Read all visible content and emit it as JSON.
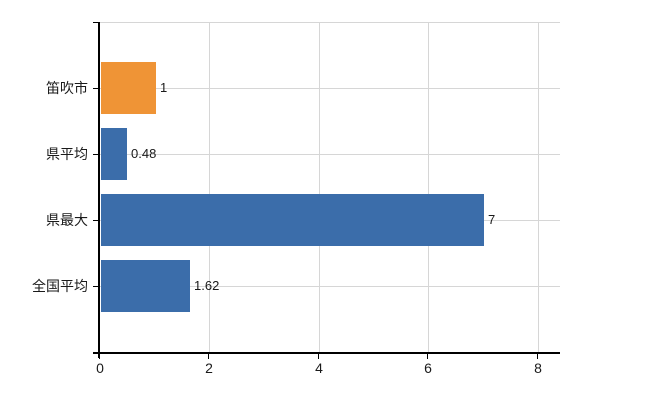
{
  "chart_data": {
    "type": "bar",
    "orientation": "horizontal",
    "title": "",
    "xlabel": "",
    "ylabel": "",
    "categories": [
      "笛吹市",
      "県平均",
      "県最大",
      "全国平均"
    ],
    "values": [
      1,
      0.48,
      7,
      1.62
    ],
    "value_labels": [
      "1",
      "0.48",
      "7",
      "1.62"
    ],
    "bar_colors": [
      "#ef9436",
      "#3b6daa",
      "#3b6daa",
      "#3b6daa"
    ],
    "x_ticks": [
      "0",
      "2",
      "4",
      "6",
      "8"
    ],
    "x_tick_values": [
      0,
      2,
      4,
      6,
      8
    ],
    "xlim": [
      0,
      8.4
    ],
    "grid": true,
    "legend": false,
    "colors": {
      "highlight_bar": "#ef9436",
      "default_bar": "#3b6daa",
      "gridline": "#d6d6d6",
      "axis": "#000000",
      "text": "#1a1a1a",
      "background": "#ffffff"
    }
  }
}
